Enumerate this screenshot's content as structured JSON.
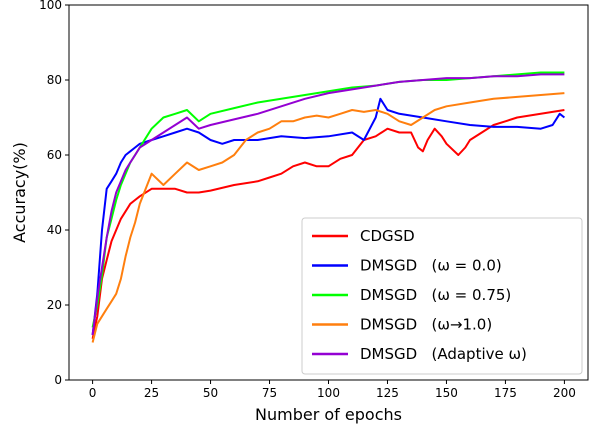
{
  "chart_data": {
    "type": "line",
    "title": "",
    "xlabel": "Number of epochs",
    "ylabel": "Accuracy(%)",
    "xlim": [
      -10,
      210
    ],
    "ylim": [
      0,
      100
    ],
    "xticks": [
      0,
      25,
      50,
      75,
      100,
      125,
      150,
      175,
      200
    ],
    "yticks": [
      0,
      20,
      40,
      60,
      80,
      100
    ],
    "grid": false,
    "legend_position": "lower-right",
    "series": [
      {
        "name": "CDGSD",
        "color": "#ff0000",
        "x": [
          0,
          2,
          4,
          6,
          8,
          10,
          12,
          14,
          16,
          18,
          20,
          25,
          30,
          35,
          40,
          45,
          50,
          60,
          70,
          75,
          80,
          85,
          90,
          95,
          100,
          105,
          110,
          115,
          120,
          125,
          130,
          135,
          138,
          140,
          142,
          145,
          148,
          150,
          155,
          158,
          160,
          165,
          170,
          175,
          180,
          185,
          190,
          195,
          200
        ],
        "values": [
          11,
          17,
          27,
          32,
          37,
          40,
          43,
          45,
          47,
          48,
          49,
          51,
          51,
          51,
          50,
          50,
          50.5,
          52,
          53,
          54,
          55,
          57,
          58,
          57,
          57,
          59,
          60,
          64,
          65,
          67,
          66,
          66,
          62,
          61,
          64,
          67,
          65,
          63,
          60,
          62,
          64,
          66,
          68,
          69,
          70,
          70.5,
          71,
          71.5,
          72
        ]
      },
      {
        "name": "DMSGD   (ω = 0.0)",
        "color": "#0000ff",
        "x": [
          0,
          2,
          4,
          6,
          8,
          10,
          12,
          14,
          16,
          18,
          20,
          25,
          30,
          35,
          40,
          45,
          50,
          55,
          60,
          70,
          80,
          90,
          100,
          110,
          115,
          120,
          122,
          125,
          130,
          140,
          150,
          160,
          170,
          180,
          190,
          195,
          198,
          200
        ],
        "values": [
          12,
          23,
          40,
          51,
          53,
          55,
          58,
          60,
          61,
          62,
          63,
          64,
          65,
          66,
          67,
          66,
          64,
          63,
          64,
          64,
          65,
          64.5,
          65,
          66,
          64,
          70,
          75,
          72,
          71,
          70,
          69,
          68,
          67.5,
          67.5,
          67,
          68,
          71,
          70
        ]
      },
      {
        "name": "DMSGD   (ω = 0.75)",
        "color": "#00ff00",
        "x": [
          0,
          2,
          4,
          6,
          8,
          10,
          12,
          14,
          16,
          18,
          20,
          25,
          30,
          35,
          40,
          45,
          50,
          60,
          70,
          80,
          90,
          100,
          110,
          120,
          130,
          140,
          150,
          160,
          170,
          180,
          190,
          200
        ],
        "values": [
          14,
          20,
          28,
          38,
          43,
          48,
          52,
          55,
          58,
          60,
          62,
          67,
          70,
          71,
          72,
          69,
          71,
          72.5,
          74,
          75,
          76,
          77,
          78,
          78.5,
          79.5,
          80,
          80,
          80.5,
          81,
          81.5,
          82,
          82
        ]
      },
      {
        "name": "DMSGD   (ω→1.0)",
        "color": "#ff7f0e",
        "x": [
          0,
          2,
          4,
          6,
          8,
          10,
          12,
          14,
          16,
          18,
          20,
          25,
          30,
          35,
          40,
          45,
          50,
          55,
          60,
          65,
          70,
          75,
          80,
          85,
          90,
          95,
          100,
          105,
          110,
          115,
          120,
          125,
          130,
          135,
          140,
          145,
          150,
          160,
          170,
          180,
          190,
          200
        ],
        "values": [
          10,
          15,
          17,
          19,
          21,
          23,
          27,
          33,
          38,
          42,
          47,
          55,
          52,
          55,
          58,
          56,
          57,
          58,
          60,
          64,
          66,
          67,
          69,
          69,
          70,
          70.5,
          70,
          71,
          72,
          71.5,
          72,
          71,
          69,
          68,
          70,
          72,
          73,
          74,
          75,
          75.5,
          76,
          76.5
        ]
      },
      {
        "name": "DMSGD   (Adaptive ω)",
        "color": "#9400d3",
        "x": [
          0,
          2,
          4,
          6,
          8,
          10,
          12,
          14,
          16,
          18,
          20,
          25,
          30,
          35,
          40,
          45,
          50,
          60,
          70,
          80,
          90,
          100,
          110,
          120,
          130,
          140,
          150,
          160,
          170,
          180,
          190,
          200
        ],
        "values": [
          12,
          22,
          30,
          38,
          45,
          50,
          53,
          56,
          58,
          60,
          62,
          64,
          66,
          68,
          70,
          67,
          68,
          69.5,
          71,
          73,
          75,
          76.5,
          77.5,
          78.5,
          79.5,
          80,
          80.5,
          80.5,
          81,
          81,
          81.5,
          81.5
        ]
      }
    ]
  }
}
